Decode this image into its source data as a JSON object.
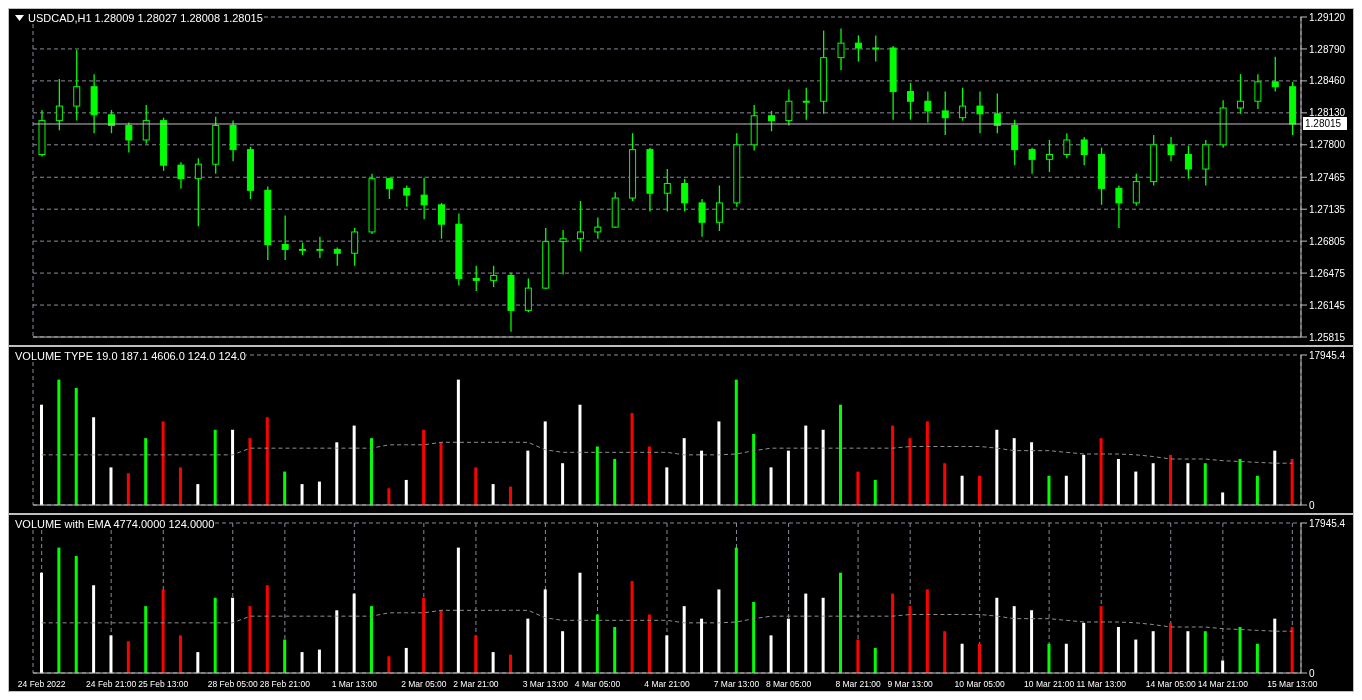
{
  "chart_data": [
    {
      "type": "candlestick",
      "title": "USDCAD,H1  1.28009 1.28027 1.28008 1.28015",
      "color": "#00ff00",
      "categories": [
        null,
        null,
        null,
        null,
        null,
        null,
        null,
        null,
        null,
        null,
        null,
        null,
        null,
        null,
        null,
        null,
        null,
        null,
        null,
        null,
        null,
        null,
        null,
        null,
        null,
        null,
        null,
        null,
        null,
        null,
        null,
        null,
        null,
        null,
        null,
        null,
        null,
        null,
        null,
        null,
        null,
        null,
        null,
        null,
        null,
        null,
        null,
        null,
        null,
        null,
        null,
        null,
        null,
        null,
        null,
        null,
        null,
        null,
        null,
        null,
        null,
        null,
        null,
        null,
        null,
        null,
        null,
        null,
        null,
        null,
        null,
        null,
        null
      ],
      "ohlc": [
        [
          1.277,
          1.2816,
          1.2768,
          1.2805
        ],
        [
          1.2805,
          1.2848,
          1.2795,
          1.282
        ],
        [
          1.282,
          1.2878,
          1.2805,
          1.284
        ],
        [
          1.284,
          1.2853,
          1.2792,
          1.2811
        ],
        [
          1.2811,
          1.2816,
          1.2792,
          1.28
        ],
        [
          1.28,
          1.2803,
          1.2772,
          1.2785
        ],
        [
          1.2785,
          1.2821,
          1.2781,
          1.2805
        ],
        [
          1.2805,
          1.2808,
          1.2753,
          1.2759
        ],
        [
          1.2759,
          1.2762,
          1.2735,
          1.2745
        ],
        [
          1.2745,
          1.2766,
          1.2696,
          1.276
        ],
        [
          1.276,
          1.2809,
          1.275,
          1.28
        ],
        [
          1.28,
          1.2805,
          1.2763,
          1.2775
        ],
        [
          1.2775,
          1.2778,
          1.2724,
          1.2733
        ],
        [
          1.2733,
          1.2737,
          1.2661,
          1.2677
        ],
        [
          1.2677,
          1.2707,
          1.2661,
          1.2672
        ],
        [
          1.2672,
          1.2679,
          1.2666,
          1.2672
        ],
        [
          1.2672,
          1.2685,
          1.2663,
          1.2672
        ],
        [
          1.2672,
          1.2674,
          1.2655,
          1.2668
        ],
        [
          1.2668,
          1.2694,
          1.2655,
          1.269
        ],
        [
          1.269,
          1.275,
          1.2688,
          1.2745
        ],
        [
          1.2745,
          1.2746,
          1.2724,
          1.2735
        ],
        [
          1.2735,
          1.2738,
          1.2716,
          1.2728
        ],
        [
          1.2728,
          1.2746,
          1.2703,
          1.2718
        ],
        [
          1.2718,
          1.272,
          1.2683,
          1.2698
        ],
        [
          1.2698,
          1.2709,
          1.2635,
          1.2642
        ],
        [
          1.2642,
          1.2655,
          1.2629,
          1.264
        ],
        [
          1.264,
          1.2655,
          1.2633,
          1.2645
        ],
        [
          1.2645,
          1.2648,
          1.2587,
          1.2609
        ],
        [
          1.2609,
          1.2642,
          1.2607,
          1.2632
        ],
        [
          1.2632,
          1.2694,
          1.2631,
          1.268
        ],
        [
          1.268,
          1.2692,
          1.2646,
          1.2683
        ],
        [
          1.2683,
          1.2722,
          1.267,
          1.269
        ],
        [
          1.269,
          1.2705,
          1.2683,
          1.2695
        ],
        [
          1.2695,
          1.2731,
          1.2694,
          1.2725
        ],
        [
          1.2725,
          1.2792,
          1.2722,
          1.2775
        ],
        [
          1.2775,
          1.2777,
          1.2711,
          1.273
        ],
        [
          1.273,
          1.2755,
          1.2711,
          1.274
        ],
        [
          1.274,
          1.2745,
          1.2711,
          1.272
        ],
        [
          1.272,
          1.2724,
          1.2685,
          1.27
        ],
        [
          1.27,
          1.2738,
          1.2691,
          1.272
        ],
        [
          1.272,
          1.2792,
          1.2716,
          1.278
        ],
        [
          1.278,
          1.2821,
          1.2774,
          1.281
        ],
        [
          1.281,
          1.2815,
          1.2794,
          1.2805
        ],
        [
          1.2805,
          1.2837,
          1.28,
          1.2825
        ],
        [
          1.2825,
          1.2839,
          1.2806,
          1.2825
        ],
        [
          1.2825,
          1.2898,
          1.2812,
          1.287
        ],
        [
          1.287,
          1.29,
          1.2857,
          1.2885
        ],
        [
          1.2885,
          1.2893,
          1.2866,
          1.288
        ],
        [
          1.288,
          1.2893,
          1.2866,
          1.288
        ],
        [
          1.288,
          1.2882,
          1.2806,
          1.2835
        ],
        [
          1.2835,
          1.2844,
          1.2806,
          1.2825
        ],
        [
          1.2825,
          1.2835,
          1.2803,
          1.2815
        ],
        [
          1.2815,
          1.2835,
          1.279,
          1.2808
        ],
        [
          1.2808,
          1.2839,
          1.2805,
          1.282
        ],
        [
          1.282,
          1.2835,
          1.2792,
          1.2812
        ],
        [
          1.2812,
          1.2833,
          1.2792,
          1.28
        ],
        [
          1.28,
          1.2806,
          1.2759,
          1.2775
        ],
        [
          1.2775,
          1.2777,
          1.275,
          1.2765
        ],
        [
          1.2765,
          1.2785,
          1.2752,
          1.277
        ],
        [
          1.277,
          1.2792,
          1.2766,
          1.2785
        ],
        [
          1.2785,
          1.2788,
          1.2759,
          1.277
        ],
        [
          1.277,
          1.2777,
          1.2718,
          1.2735
        ],
        [
          1.2735,
          1.2738,
          1.2694,
          1.272
        ],
        [
          1.272,
          1.275,
          1.2717,
          1.2742
        ],
        [
          1.2742,
          1.279,
          1.2738,
          1.278
        ],
        [
          1.278,
          1.2788,
          1.2763,
          1.277
        ],
        [
          1.277,
          1.2779,
          1.2745,
          1.2755
        ],
        [
          1.2755,
          1.2785,
          1.2738,
          1.278
        ],
        [
          1.278,
          1.2826,
          1.2777,
          1.2818
        ],
        [
          1.2818,
          1.2853,
          1.2812,
          1.2825
        ],
        [
          1.2825,
          1.2853,
          1.2817,
          1.2845
        ],
        [
          1.2845,
          1.2871,
          1.2835,
          1.284
        ],
        [
          1.284,
          1.2845,
          1.279,
          1.28015
        ]
      ],
      "ylim": [
        1.25815,
        1.2912
      ],
      "yticks": [
        {
          "value": 1.2912,
          "label": "1.29120"
        },
        {
          "value": 1.2879,
          "label": "1.28790"
        },
        {
          "value": 1.2846,
          "label": "1.28460"
        },
        {
          "value": 1.2813,
          "label": "1.28130"
        },
        {
          "value": 1.278,
          "label": "1.27800"
        },
        {
          "value": 1.27465,
          "label": "1.27465"
        },
        {
          "value": 1.27135,
          "label": "1.27135"
        },
        {
          "value": 1.26805,
          "label": "1.26805"
        },
        {
          "value": 1.26475,
          "label": "1.26475"
        },
        {
          "value": 1.26145,
          "label": "1.26145"
        },
        {
          "value": 1.25815,
          "label": "1.25815"
        }
      ],
      "ref_lines": [
        {
          "axis": "y",
          "value": 1.28015,
          "label": "1.28015",
          "color": "#c0c0c0"
        }
      ],
      "grid": true,
      "legend": false,
      "tick_labels": "y"
    },
    {
      "type": "bar",
      "title": "VOLUME TYPE 19.0 187.1 4606.0 124.0 124.0",
      "categories": [
        null,
        null,
        null,
        null,
        null,
        null,
        null,
        null,
        null,
        null,
        null,
        null,
        null,
        null,
        null,
        null,
        null,
        null,
        null,
        null,
        null,
        null,
        null,
        null,
        null,
        null,
        null,
        null,
        null,
        null,
        null,
        null,
        null,
        null,
        null,
        null,
        null,
        null,
        null,
        null,
        null,
        null,
        null,
        null,
        null,
        null,
        null,
        null,
        null,
        null,
        null,
        null,
        null,
        null,
        null,
        null,
        null,
        null,
        null,
        null,
        null,
        null,
        null,
        null,
        null,
        null,
        null,
        null,
        null,
        null,
        null,
        null,
        null
      ],
      "series": [
        {
          "type": "bar",
          "values": [
            12000,
            15000,
            14000,
            10500,
            4500,
            3800,
            8000,
            10000,
            4500,
            2500,
            9000,
            9000,
            8000,
            10500,
            4000,
            2500,
            2800,
            7500,
            9500,
            8000,
            2000,
            3000,
            9000,
            7500,
            15000,
            4500,
            2500,
            2200,
            6500,
            10000,
            5000,
            12000,
            7000,
            5500,
            11000,
            7000,
            4500,
            8000,
            6500,
            10000,
            15000,
            8500,
            4500,
            6500,
            9500,
            9000,
            12000,
            4000,
            3000,
            9500,
            8000,
            10000,
            5000,
            3500,
            3500,
            9000,
            8000,
            7500,
            3500,
            3500,
            6000,
            8000,
            5500,
            4000,
            5000,
            6000,
            5000,
            5000,
            1500,
            5500,
            3500,
            6500,
            5500
          ],
          "colors": [
            "#ffffff",
            "#00ff00",
            "#00ff00",
            "#ffffff",
            "#ffffff",
            "#ff0000",
            "#00ff00",
            "#ff0000",
            "#ff0000",
            "#ffffff",
            "#00ff00",
            "#ffffff",
            "#ff0000",
            "#ff0000",
            "#00ff00",
            "#ffffff",
            "#ffffff",
            "#ffffff",
            "#ffffff",
            "#00ff00",
            "#ff0000",
            "#ffffff",
            "#ff0000",
            "#ff0000",
            "#ffffff",
            "#ff0000",
            "#ffffff",
            "#ff0000",
            "#ffffff",
            "#ffffff",
            "#ffffff",
            "#ffffff",
            "#00ff00",
            "#00ff00",
            "#ff0000",
            "#ff0000",
            "#ffffff",
            "#ffffff",
            "#ffffff",
            "#ffffff",
            "#00ff00",
            "#00ff00",
            "#ffffff",
            "#ffffff",
            "#ffffff",
            "#ffffff",
            "#00ff00",
            "#ff0000",
            "#00ff00",
            "#ff0000",
            "#ff0000",
            "#ff0000",
            "#ff0000",
            "#ffffff",
            "#ff0000",
            "#ffffff",
            "#ffffff",
            "#ffffff",
            "#00ff00",
            "#ffffff",
            "#ffffff",
            "#ff0000",
            "#ffffff",
            "#ffffff",
            "#ffffff",
            "#ff0000",
            "#ffffff",
            "#00ff00",
            "#ffffff",
            "#00ff00",
            "#00ff00",
            "#ffffff",
            "#ff0000"
          ]
        },
        {
          "type": "line",
          "color": "#909090",
          "line_style": "dashed",
          "marker": "none",
          "values": [
            6000,
            6000,
            6000,
            6000,
            6000,
            6000,
            6000,
            6000,
            6000,
            6000,
            6000,
            6000,
            6800,
            6800,
            6800,
            6800,
            6800,
            6800,
            6800,
            6800,
            7200,
            7200,
            7200,
            7500,
            7500,
            7500,
            7500,
            7500,
            7500,
            6600,
            6300,
            6300,
            6300,
            6300,
            6300,
            6300,
            6300,
            6000,
            6000,
            6000,
            6100,
            6500,
            6800,
            6800,
            6800,
            6800,
            6800,
            6800,
            6800,
            6800,
            7000,
            7000,
            7000,
            7000,
            7000,
            6800,
            6500,
            6500,
            6500,
            6300,
            6100,
            6100,
            6100,
            6000,
            5800,
            5500,
            5500,
            5500,
            5300,
            5200,
            5100,
            5000,
            5000
          ]
        }
      ],
      "ylim": [
        0,
        17945.4
      ],
      "yticks": [
        {
          "value": 0,
          "label": "0"
        },
        17945.4
      ],
      "grid": true,
      "legend": false,
      "tick_labels": "y"
    },
    {
      "type": "bar",
      "title": "VOLUME with EMA 4774.0000 124.0000",
      "categories": [
        "24 Feb 2022",
        null,
        null,
        null,
        "24 Feb 21:00",
        null,
        null,
        "25 Feb 13:00",
        null,
        null,
        null,
        "28 Feb 05:00",
        null,
        null,
        "28 Feb 21:00",
        null,
        null,
        null,
        "1 Mar 13:00",
        null,
        null,
        null,
        "2 Mar 05:00",
        null,
        null,
        "2 Mar 21:00",
        null,
        null,
        null,
        "3 Mar 13:00",
        null,
        null,
        "4 Mar 05:00",
        null,
        null,
        null,
        "4 Mar 21:00",
        null,
        null,
        null,
        "7 Mar 13:00",
        null,
        null,
        "8 Mar 05:00",
        null,
        null,
        null,
        "8 Mar 21:00",
        null,
        null,
        "9 Mar 13:00",
        null,
        null,
        null,
        "10 Mar 05:00",
        null,
        null,
        null,
        "10 Mar 21:00",
        null,
        null,
        "11 Mar 13:00",
        null,
        null,
        null,
        "14 Mar 05:00",
        null,
        null,
        "14 Mar 21:00",
        null,
        null,
        null,
        "15 Mar 13:00"
      ],
      "series": [
        {
          "type": "bar",
          "values": [
            12000,
            15000,
            14000,
            10500,
            4500,
            3800,
            8000,
            10000,
            4500,
            2500,
            9000,
            9000,
            8000,
            10500,
            4000,
            2500,
            2800,
            7500,
            9500,
            8000,
            2000,
            3000,
            9000,
            7500,
            15000,
            4500,
            2500,
            2200,
            6500,
            10000,
            5000,
            12000,
            7000,
            5500,
            11000,
            7000,
            4500,
            8000,
            6500,
            10000,
            15000,
            8500,
            4500,
            6500,
            9500,
            9000,
            12000,
            4000,
            3000,
            9500,
            8000,
            10000,
            5000,
            3500,
            3500,
            9000,
            8000,
            7500,
            3500,
            3500,
            6000,
            8000,
            5500,
            4000,
            5000,
            6000,
            5000,
            5000,
            1500,
            5500,
            3500,
            6500,
            5500
          ],
          "colors": [
            "#ffffff",
            "#00ff00",
            "#00ff00",
            "#ffffff",
            "#ffffff",
            "#ff0000",
            "#00ff00",
            "#ff0000",
            "#ff0000",
            "#ffffff",
            "#00ff00",
            "#ffffff",
            "#ff0000",
            "#ff0000",
            "#00ff00",
            "#ffffff",
            "#ffffff",
            "#ffffff",
            "#ffffff",
            "#00ff00",
            "#ff0000",
            "#ffffff",
            "#ff0000",
            "#ff0000",
            "#ffffff",
            "#ff0000",
            "#ffffff",
            "#ff0000",
            "#ffffff",
            "#ffffff",
            "#ffffff",
            "#ffffff",
            "#00ff00",
            "#00ff00",
            "#ff0000",
            "#ff0000",
            "#ffffff",
            "#ffffff",
            "#ffffff",
            "#ffffff",
            "#00ff00",
            "#00ff00",
            "#ffffff",
            "#ffffff",
            "#ffffff",
            "#ffffff",
            "#00ff00",
            "#ff0000",
            "#00ff00",
            "#ff0000",
            "#ff0000",
            "#ff0000",
            "#ff0000",
            "#ffffff",
            "#ff0000",
            "#ffffff",
            "#ffffff",
            "#ffffff",
            "#00ff00",
            "#ffffff",
            "#ffffff",
            "#ff0000",
            "#ffffff",
            "#ffffff",
            "#ffffff",
            "#ff0000",
            "#ffffff",
            "#00ff00",
            "#ffffff",
            "#00ff00",
            "#00ff00",
            "#ffffff",
            "#ff0000"
          ]
        },
        {
          "type": "line",
          "color": "#909090",
          "line_style": "dashed",
          "marker": "none",
          "values": [
            6000,
            6000,
            6000,
            6000,
            6000,
            6000,
            6000,
            6000,
            6000,
            6000,
            6000,
            6000,
            6800,
            6800,
            6800,
            6800,
            6800,
            6800,
            6800,
            6800,
            7200,
            7200,
            7200,
            7500,
            7500,
            7500,
            7500,
            7500,
            7500,
            6600,
            6300,
            6300,
            6300,
            6300,
            6300,
            6300,
            6300,
            6000,
            6000,
            6000,
            6100,
            6500,
            6800,
            6800,
            6800,
            6800,
            6800,
            6800,
            6800,
            6800,
            7000,
            7000,
            7000,
            7000,
            7000,
            6800,
            6500,
            6500,
            6500,
            6300,
            6100,
            6100,
            6100,
            6000,
            5800,
            5500,
            5500,
            5500,
            5300,
            5200,
            5100,
            5000,
            5000
          ]
        }
      ],
      "ylim": [
        0,
        17945.4
      ],
      "yticks": [
        {
          "value": 0,
          "label": "0"
        },
        17945.4
      ],
      "grid": true,
      "legend": false
    }
  ]
}
